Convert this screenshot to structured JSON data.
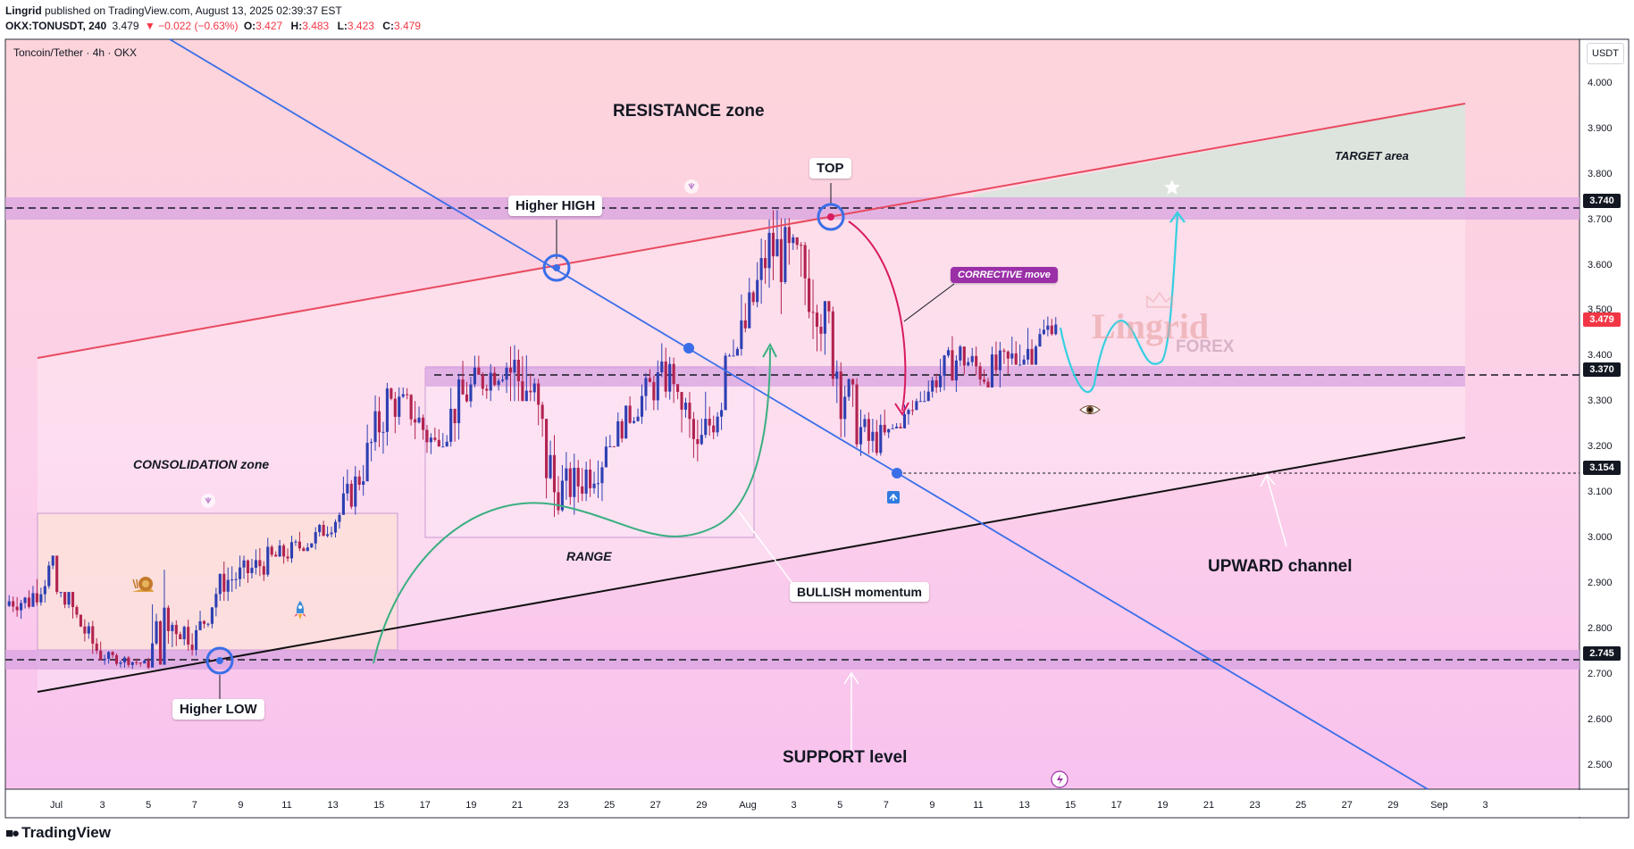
{
  "header": {
    "line1": "Lingrid published on TradingView.com, August 13, 2025 02:39:37 EST",
    "symbol": "OKX:TONUSDT, 240",
    "last": "3.479",
    "change": "▼ −0.022 (−0.63%)",
    "o_label": "O:",
    "o": "3.427",
    "h_label": "H:",
    "h": "3.483",
    "l_label": "L:",
    "l": "3.423",
    "c_label": "C:",
    "c": "3.479"
  },
  "chart_title": "Toncoin/Tether · 4h · OKX",
  "currency": "USDT",
  "footer_brand": "TradingView",
  "colors": {
    "bull": "#2d3fb2",
    "bear": "#b2234f",
    "resistance_line": "#e84a5f",
    "trend_line": "#3a6ee8",
    "channel_line": "#111111",
    "zone": "#d8a3e0",
    "target_area": "#d8e4dc",
    "forecast": "#35d0e0",
    "corrective": "#9a2fa8"
  },
  "annotations": {
    "resistance": "RESISTANCE zone",
    "consolidation": "CONSOLIDATION zone",
    "range": "RANGE",
    "target": "TARGET area",
    "upward": "UPWARD channel",
    "support": "SUPPORT level",
    "higher_high": "Higher HIGH",
    "top": "TOP",
    "higher_low": "Higher LOW",
    "bullish": "BULLISH momentum",
    "corrective": "CORRECTIVE move",
    "watermark_main": "Lingrid",
    "watermark_sub": "FOREX"
  },
  "icons": [
    "snail-icon",
    "rocket-icon",
    "eye-icon",
    "star-icon",
    "arrow-up-icon",
    "arrow-down-icon",
    "lightning-icon",
    "tradingview-logo-icon"
  ],
  "price_levels": [
    {
      "value": 3.74,
      "label": "3.740",
      "bg": "#131722",
      "fg": "#ffffff"
    },
    {
      "value": 3.479,
      "label": "3.479",
      "bg": "#f23645",
      "fg": "#ffffff"
    },
    {
      "value": 3.37,
      "label": "3.370",
      "bg": "#131722",
      "fg": "#ffffff"
    },
    {
      "value": 3.154,
      "label": "3.154",
      "bg": "#131722",
      "fg": "#ffffff"
    },
    {
      "value": 2.745,
      "label": "2.745",
      "bg": "#131722",
      "fg": "#ffffff"
    }
  ],
  "chart_data": {
    "type": "candlestick",
    "title": "Toncoin/Tether · 4h · OKX",
    "ylabel": "USDT",
    "ylim": [
      2.45,
      4.1
    ],
    "y_ticks": [
      "4.000",
      "3.900",
      "3.800",
      "3.700",
      "3.600",
      "3.500",
      "3.400",
      "3.300",
      "3.200",
      "3.100",
      "3.000",
      "2.900",
      "2.800",
      "2.700",
      "2.600",
      "2.500"
    ],
    "x_ticks": [
      "Jul",
      "3",
      "5",
      "7",
      "9",
      "11",
      "13",
      "15",
      "17",
      "19",
      "21",
      "23",
      "25",
      "27",
      "29",
      "Aug",
      "3",
      "5",
      "7",
      "9",
      "11",
      "13",
      "15",
      "17",
      "19",
      "21",
      "23",
      "25",
      "27",
      "29",
      "Sep",
      "3"
    ],
    "series": [
      {
        "name": "TONUSDT",
        "daily_close": [
          2.86,
          2.94,
          2.82,
          2.74,
          2.73,
          2.72,
          2.81,
          2.78,
          2.9,
          2.92,
          2.95,
          2.97,
          3.0,
          3.05,
          3.15,
          3.3,
          3.28,
          3.2,
          3.3,
          3.35,
          3.38,
          3.32,
          3.1,
          3.12,
          3.18,
          3.26,
          3.33,
          3.36,
          3.18,
          3.32,
          3.46,
          3.64,
          3.6,
          3.55,
          3.35,
          3.21,
          3.22,
          3.28,
          3.35,
          3.4,
          3.36,
          3.38,
          3.42,
          3.48
        ],
        "daily_high": [
          2.9,
          2.96,
          2.88,
          2.82,
          2.75,
          2.74,
          3.05,
          2.85,
          2.92,
          2.96,
          3.0,
          3.02,
          3.05,
          3.08,
          3.18,
          3.34,
          3.33,
          3.3,
          3.36,
          3.4,
          3.42,
          3.6,
          3.35,
          3.2,
          3.25,
          3.3,
          3.37,
          3.43,
          3.32,
          3.4,
          3.6,
          3.7,
          3.72,
          3.65,
          3.52,
          3.35,
          3.3,
          3.33,
          3.4,
          3.45,
          3.42,
          3.46,
          3.55,
          3.5
        ],
        "daily_low": [
          2.82,
          2.85,
          2.77,
          2.73,
          2.71,
          2.71,
          2.72,
          2.74,
          2.8,
          2.86,
          2.9,
          2.94,
          2.97,
          3.0,
          3.05,
          3.15,
          3.2,
          3.15,
          3.2,
          3.25,
          3.3,
          3.3,
          3.02,
          3.05,
          3.08,
          3.2,
          3.25,
          3.28,
          3.15,
          3.2,
          3.4,
          3.5,
          3.48,
          3.36,
          3.22,
          3.15,
          3.18,
          3.24,
          3.3,
          3.32,
          3.3,
          3.33,
          3.38,
          3.42
        ]
      }
    ],
    "last_price": 3.479
  }
}
